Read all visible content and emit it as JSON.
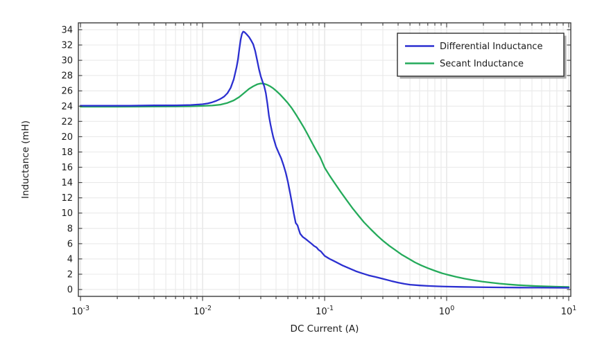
{
  "chart_data": {
    "type": "line",
    "title": "",
    "xlabel": "DC Current (A)",
    "ylabel": "Inductance (mH)",
    "x_scale": "log",
    "xlim": [
      0.00096,
      10.4
    ],
    "ylim": [
      -0.9,
      34.9
    ],
    "x_tick_exponents": [
      -3,
      -2,
      -1,
      0,
      1
    ],
    "y_ticks": [
      0,
      2,
      4,
      6,
      8,
      10,
      12,
      14,
      16,
      18,
      20,
      22,
      24,
      26,
      28,
      30,
      32,
      34
    ],
    "grid": true,
    "legend_position": "top-right",
    "background_color": "#ffffff",
    "grid_color": "#e9e9e9",
    "grid_major_color": "#dedede",
    "frame_color": "#3a3a3a",
    "text_color": "#1a1a1a",
    "legend_border_color": "#2e2e2e",
    "legend_shadow_color": "#ababab",
    "series": [
      {
        "name": "Differential Inductance",
        "color": "#2b2fd0",
        "points": [
          [
            0.001,
            24.05
          ],
          [
            0.0016,
            24.05
          ],
          [
            0.0025,
            24.05
          ],
          [
            0.004,
            24.1
          ],
          [
            0.006,
            24.1
          ],
          [
            0.008,
            24.15
          ],
          [
            0.01,
            24.25
          ],
          [
            0.011,
            24.35
          ],
          [
            0.012,
            24.5
          ],
          [
            0.013,
            24.7
          ],
          [
            0.014,
            24.95
          ],
          [
            0.015,
            25.25
          ],
          [
            0.016,
            25.7
          ],
          [
            0.017,
            26.4
          ],
          [
            0.018,
            27.5
          ],
          [
            0.019,
            29.1
          ],
          [
            0.0195,
            30.1
          ],
          [
            0.02,
            31.5
          ],
          [
            0.0205,
            32.7
          ],
          [
            0.021,
            33.45
          ],
          [
            0.0215,
            33.75
          ],
          [
            0.022,
            33.7
          ],
          [
            0.023,
            33.4
          ],
          [
            0.024,
            33.05
          ],
          [
            0.025,
            32.6
          ],
          [
            0.026,
            32.1
          ],
          [
            0.027,
            31.2
          ],
          [
            0.028,
            30.0
          ],
          [
            0.029,
            28.8
          ],
          [
            0.03,
            27.9
          ],
          [
            0.031,
            27.2
          ],
          [
            0.032,
            26.6
          ],
          [
            0.033,
            25.7
          ],
          [
            0.034,
            24.3
          ],
          [
            0.035,
            22.7
          ],
          [
            0.036,
            21.6
          ],
          [
            0.037,
            20.7
          ],
          [
            0.038,
            19.9
          ],
          [
            0.04,
            18.7
          ],
          [
            0.042,
            17.9
          ],
          [
            0.044,
            17.2
          ],
          [
            0.046,
            16.3
          ],
          [
            0.048,
            15.3
          ],
          [
            0.05,
            14.1
          ],
          [
            0.052,
            12.7
          ],
          [
            0.054,
            11.3
          ],
          [
            0.056,
            9.9
          ],
          [
            0.058,
            8.7
          ],
          [
            0.06,
            8.4
          ],
          [
            0.061,
            8.0
          ],
          [
            0.063,
            7.3
          ],
          [
            0.066,
            6.9
          ],
          [
            0.07,
            6.6
          ],
          [
            0.074,
            6.3
          ],
          [
            0.078,
            6.0
          ],
          [
            0.082,
            5.7
          ],
          [
            0.086,
            5.5
          ],
          [
            0.089,
            5.2
          ],
          [
            0.093,
            5.0
          ],
          [
            0.1,
            4.4
          ],
          [
            0.11,
            4.0
          ],
          [
            0.12,
            3.7
          ],
          [
            0.14,
            3.15
          ],
          [
            0.16,
            2.75
          ],
          [
            0.18,
            2.4
          ],
          [
            0.2,
            2.15
          ],
          [
            0.23,
            1.85
          ],
          [
            0.26,
            1.65
          ],
          [
            0.3,
            1.4
          ],
          [
            0.35,
            1.12
          ],
          [
            0.4,
            0.9
          ],
          [
            0.45,
            0.74
          ],
          [
            0.5,
            0.63
          ],
          [
            0.6,
            0.53
          ],
          [
            0.7,
            0.47
          ],
          [
            0.85,
            0.41
          ],
          [
            1.0,
            0.38
          ],
          [
            1.3,
            0.34
          ],
          [
            1.7,
            0.31
          ],
          [
            2.2,
            0.29
          ],
          [
            3.0,
            0.27
          ],
          [
            4.0,
            0.25
          ],
          [
            5.5,
            0.24
          ],
          [
            7.5,
            0.23
          ],
          [
            10,
            0.22
          ]
        ]
      },
      {
        "name": "Secant Inductance",
        "color": "#24aa5a",
        "points": [
          [
            0.001,
            23.92
          ],
          [
            0.002,
            23.92
          ],
          [
            0.003,
            23.93
          ],
          [
            0.004,
            23.94
          ],
          [
            0.006,
            23.96
          ],
          [
            0.008,
            23.98
          ],
          [
            0.01,
            24.02
          ],
          [
            0.012,
            24.08
          ],
          [
            0.014,
            24.2
          ],
          [
            0.016,
            24.42
          ],
          [
            0.018,
            24.75
          ],
          [
            0.02,
            25.2
          ],
          [
            0.022,
            25.75
          ],
          [
            0.024,
            26.25
          ],
          [
            0.026,
            26.6
          ],
          [
            0.028,
            26.85
          ],
          [
            0.03,
            26.97
          ],
          [
            0.032,
            26.92
          ],
          [
            0.034,
            26.78
          ],
          [
            0.036,
            26.57
          ],
          [
            0.038,
            26.32
          ],
          [
            0.04,
            26.02
          ],
          [
            0.043,
            25.55
          ],
          [
            0.046,
            25.05
          ],
          [
            0.05,
            24.4
          ],
          [
            0.054,
            23.7
          ],
          [
            0.058,
            22.95
          ],
          [
            0.062,
            22.2
          ],
          [
            0.067,
            21.3
          ],
          [
            0.072,
            20.4
          ],
          [
            0.078,
            19.35
          ],
          [
            0.085,
            18.25
          ],
          [
            0.092,
            17.3
          ],
          [
            0.1,
            15.95
          ],
          [
            0.11,
            14.9
          ],
          [
            0.12,
            14.0
          ],
          [
            0.135,
            12.8
          ],
          [
            0.15,
            11.8
          ],
          [
            0.17,
            10.6
          ],
          [
            0.19,
            9.65
          ],
          [
            0.21,
            8.8
          ],
          [
            0.24,
            7.85
          ],
          [
            0.27,
            7.05
          ],
          [
            0.3,
            6.4
          ],
          [
            0.34,
            5.7
          ],
          [
            0.38,
            5.15
          ],
          [
            0.43,
            4.55
          ],
          [
            0.48,
            4.1
          ],
          [
            0.55,
            3.55
          ],
          [
            0.62,
            3.15
          ],
          [
            0.7,
            2.8
          ],
          [
            0.8,
            2.45
          ],
          [
            0.92,
            2.12
          ],
          [
            1.05,
            1.87
          ],
          [
            1.2,
            1.65
          ],
          [
            1.4,
            1.42
          ],
          [
            1.65,
            1.22
          ],
          [
            1.95,
            1.04
          ],
          [
            2.3,
            0.9
          ],
          [
            2.7,
            0.78
          ],
          [
            3.2,
            0.67
          ],
          [
            3.8,
            0.58
          ],
          [
            4.5,
            0.51
          ],
          [
            5.5,
            0.45
          ],
          [
            6.5,
            0.41
          ],
          [
            8.0,
            0.37
          ],
          [
            10,
            0.33
          ]
        ]
      }
    ]
  }
}
